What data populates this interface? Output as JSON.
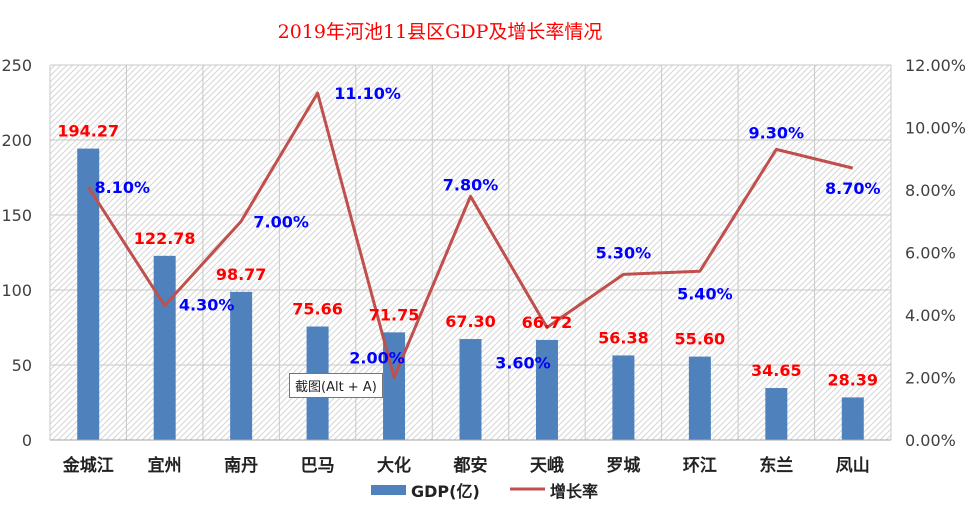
{
  "chart_data": {
    "type": "bar",
    "title": "2019年河池11县区GDP及增长率情况",
    "categories": [
      "金城江",
      "宜州",
      "南丹",
      "巴马",
      "大化",
      "都安",
      "天峨",
      "罗城",
      "环江",
      "东兰",
      "凤山"
    ],
    "series": [
      {
        "name": "GDP(亿)",
        "type": "bar",
        "axis": "left",
        "values": [
          194.27,
          122.78,
          98.77,
          75.66,
          71.75,
          67.3,
          66.72,
          56.38,
          55.6,
          34.65,
          28.39
        ],
        "labels": [
          "194.27",
          "122.78",
          "98.77",
          "75.66",
          "71.75",
          "67.30",
          "66.72",
          "56.38",
          "55.60",
          "34.65",
          "28.39"
        ]
      },
      {
        "name": "增长率",
        "type": "line",
        "axis": "right",
        "values": [
          8.1,
          4.3,
          7.0,
          11.1,
          2.0,
          7.8,
          3.6,
          5.3,
          5.4,
          9.3,
          8.7
        ],
        "labels": [
          "8.10%",
          "4.30%",
          "7.00%",
          "11.10%",
          "2.00%",
          "7.80%",
          "3.60%",
          "5.30%",
          "5.40%",
          "9.30%",
          "8.70%"
        ]
      }
    ],
    "y_left": {
      "range": [
        0,
        250
      ],
      "ticks": [
        "0",
        "50",
        "100",
        "150",
        "200",
        "250"
      ]
    },
    "y_right": {
      "range": [
        0,
        12
      ],
      "ticks": [
        "0.00%",
        "2.00%",
        "4.00%",
        "6.00%",
        "8.00%",
        "10.00%",
        "12.00%"
      ]
    },
    "grid": true,
    "legend": "bottom-center",
    "colors": {
      "bar": "#4f81bd",
      "line": "#c0504d",
      "bar_label": "#ff0000",
      "line_label": "#0000ff",
      "title": "#ff0000"
    }
  },
  "tooltip": {
    "text": "截图(Alt + A)"
  }
}
